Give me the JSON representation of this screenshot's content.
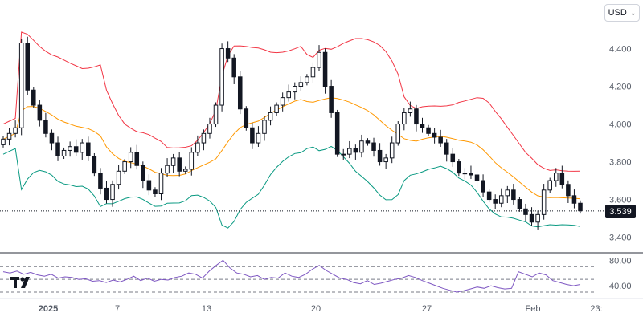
{
  "currency": {
    "label": "USD",
    "chevron_icon": "chevron-down-icon"
  },
  "last_price_label": "3.539",
  "x_axis": {
    "ticks": [
      "2025",
      "7",
      "13",
      "20",
      "27",
      "Feb",
      "23:"
    ]
  },
  "colors": {
    "candle": "#131722",
    "upper_band": "#f23645",
    "middle_band": "#ff9800",
    "lower_band": "#089981",
    "rsi": "#7e57c2",
    "rsi_bands": "#787b86"
  },
  "chart_data": [
    {
      "type": "candlestick",
      "title": "",
      "y_axis": {
        "ticks": [
          "4.400",
          "4.200",
          "4.000",
          "3.800",
          "3.600",
          "3.400"
        ],
        "range": [
          3.33,
          4.53
        ]
      },
      "last_price": 3.539,
      "overlays": [
        "Bollinger upper band",
        "Bollinger middle band",
        "Bollinger lower band"
      ],
      "close_series": [
        3.92,
        3.95,
        3.98,
        4.43,
        4.18,
        4.1,
        4.02,
        3.95,
        3.9,
        3.83,
        3.86,
        3.88,
        3.85,
        3.9,
        3.83,
        3.74,
        3.66,
        3.6,
        3.68,
        3.75,
        3.8,
        3.85,
        3.78,
        3.7,
        3.65,
        3.63,
        3.74,
        3.78,
        3.82,
        3.75,
        3.76,
        3.85,
        3.9,
        3.95,
        4.0,
        4.1,
        4.4,
        4.35,
        4.25,
        4.08,
        3.98,
        3.9,
        3.95,
        4.02,
        4.06,
        4.1,
        4.14,
        4.17,
        4.2,
        4.22,
        4.25,
        4.3,
        4.38,
        4.2,
        4.06,
        3.84,
        3.84,
        3.87,
        3.85,
        3.91,
        3.9,
        3.86,
        3.8,
        3.82,
        3.9,
        4.0,
        4.06,
        4.08,
        4.0,
        3.98,
        3.95,
        3.93,
        3.9,
        3.84,
        3.8,
        3.74,
        3.74,
        3.73,
        3.7,
        3.64,
        3.6,
        3.58,
        3.62,
        3.65,
        3.6,
        3.55,
        3.52,
        3.48,
        3.52,
        3.65,
        3.7,
        3.74,
        3.68,
        3.62,
        3.58,
        3.54
      ]
    },
    {
      "type": "line",
      "title": "",
      "y_axis": {
        "ticks": [
          "80.00",
          "40.00"
        ],
        "range": [
          25,
          88
        ]
      },
      "reference_lines": [
        70,
        50,
        30
      ],
      "series": [
        {
          "values": [
            62,
            60,
            63,
            58,
            61,
            57,
            55,
            58,
            52,
            54,
            53,
            50,
            51,
            47,
            48,
            45,
            49,
            46,
            50,
            55,
            48,
            52,
            47,
            50,
            49,
            53,
            55,
            60,
            58,
            52,
            63,
            72,
            80,
            68,
            60,
            58,
            54,
            56,
            50,
            53,
            52,
            60,
            55,
            53,
            58,
            66,
            72,
            64,
            58,
            52,
            50,
            45,
            43,
            48,
            42,
            44,
            47,
            50,
            52,
            56,
            53,
            48,
            44,
            40,
            36,
            33,
            30,
            32,
            35,
            38,
            36,
            40,
            37,
            35,
            36,
            62,
            58,
            54,
            60,
            57,
            48,
            45,
            42,
            40,
            42
          ]
        }
      ]
    }
  ]
}
